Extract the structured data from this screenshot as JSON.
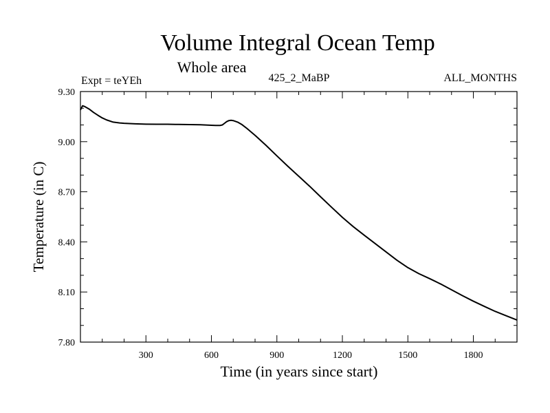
{
  "chart_data": {
    "type": "line",
    "title": "Volume Integral Ocean Temp",
    "subtitle": "Whole area",
    "header_left": "Expt = teYEh",
    "header_center": "425_2_MaBP",
    "header_right": "ALL_MONTHS",
    "xlabel": "Time (in years since start)",
    "ylabel": "Temperature (in C)",
    "xlim": [
      0,
      2000
    ],
    "ylim": [
      7.8,
      9.3
    ],
    "xticks": [
      300,
      600,
      900,
      1200,
      1500,
      1800
    ],
    "xtick_labels": [
      "300",
      "600",
      "900",
      "1200",
      "1500",
      "1800"
    ],
    "yticks": [
      7.8,
      8.1,
      8.4,
      8.7,
      9.0,
      9.3
    ],
    "ytick_labels": [
      "7.80",
      "8.10",
      "8.40",
      "8.70",
      "9.00",
      "9.30"
    ],
    "x_minor_step": 100,
    "y_minor_step": 0.1,
    "grid": false,
    "series": [
      {
        "name": "teYEh",
        "color": "#000000",
        "x": [
          0,
          10,
          20,
          40,
          60,
          80,
          100,
          120,
          150,
          180,
          200,
          250,
          300,
          350,
          400,
          450,
          500,
          550,
          600,
          620,
          640,
          650,
          660,
          670,
          680,
          690,
          700,
          720,
          740,
          760,
          780,
          800,
          850,
          900,
          950,
          1000,
          1050,
          1100,
          1150,
          1200,
          1250,
          1300,
          1350,
          1400,
          1450,
          1500,
          1550,
          1600,
          1650,
          1700,
          1750,
          1800,
          1850,
          1900,
          1950,
          2000
        ],
        "values": [
          9.19,
          9.215,
          9.21,
          9.195,
          9.175,
          9.158,
          9.142,
          9.13,
          9.117,
          9.112,
          9.11,
          9.107,
          9.105,
          9.104,
          9.104,
          9.103,
          9.102,
          9.101,
          9.098,
          9.097,
          9.097,
          9.1,
          9.11,
          9.12,
          9.126,
          9.128,
          9.126,
          9.117,
          9.102,
          9.082,
          9.06,
          9.038,
          8.978,
          8.915,
          8.853,
          8.793,
          8.733,
          8.67,
          8.608,
          8.547,
          8.491,
          8.44,
          8.39,
          8.34,
          8.29,
          8.246,
          8.21,
          8.18,
          8.148,
          8.113,
          8.078,
          8.045,
          8.014,
          7.984,
          7.958,
          7.932
        ]
      }
    ]
  }
}
